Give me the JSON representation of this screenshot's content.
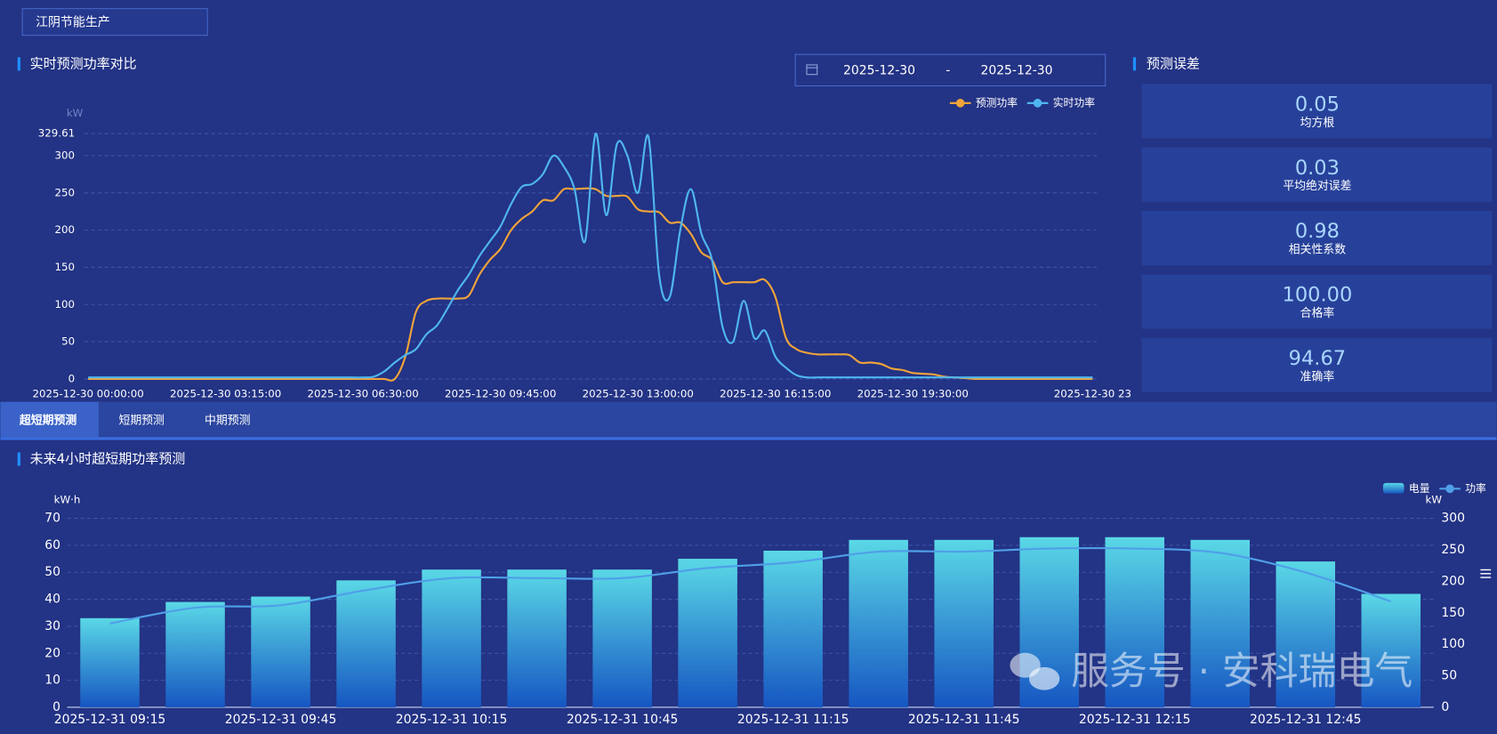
{
  "header": {
    "station": "江阴节能生产"
  },
  "date_range": {
    "start": "2025-12-30",
    "separator": "-",
    "end": "2025-12-30"
  },
  "chart_data": [
    {
      "type": "line",
      "title": "实时预测功率对比",
      "y_unit": "kW",
      "categories": [
        "2025-12-30 00:00:00",
        null,
        null,
        null,
        null,
        null,
        null,
        null,
        null,
        null,
        null,
        null,
        null,
        "2025-12-30 03:15:00",
        null,
        null,
        null,
        null,
        null,
        null,
        null,
        null,
        null,
        null,
        null,
        null,
        "2025-12-30 06:30:00",
        null,
        null,
        null,
        null,
        null,
        null,
        null,
        null,
        null,
        null,
        null,
        null,
        "2025-12-30 09:45:00",
        null,
        null,
        null,
        null,
        null,
        null,
        null,
        null,
        null,
        null,
        null,
        null,
        "2025-12-30 13:00:00",
        null,
        null,
        null,
        null,
        null,
        null,
        null,
        null,
        null,
        null,
        null,
        null,
        "2025-12-30 16:15:00",
        null,
        null,
        null,
        null,
        null,
        null,
        null,
        null,
        null,
        null,
        null,
        null,
        "2025-12-30 19:30:00",
        null,
        null,
        null,
        null,
        null,
        null,
        null,
        null,
        null,
        null,
        null,
        null,
        null,
        null,
        null,
        null,
        "2025-12-30 23"
      ],
      "series": [
        {
          "name": "预测功率",
          "color": "#f0a33a",
          "values": [
            0,
            0,
            0,
            0,
            0,
            0,
            0,
            0,
            0,
            0,
            0,
            0,
            0,
            0,
            0,
            0,
            0,
            0,
            0,
            0,
            0,
            0,
            0,
            0,
            0,
            0,
            0,
            0,
            0,
            0,
            30,
            90,
            105,
            108,
            108,
            108,
            112,
            140,
            160,
            175,
            200,
            215,
            225,
            240,
            240,
            255,
            255,
            256,
            255,
            246,
            246,
            245,
            228,
            225,
            224,
            210,
            210,
            195,
            170,
            160,
            130,
            130,
            130,
            130,
            133,
            110,
            55,
            40,
            35,
            33,
            33,
            33,
            32,
            22,
            22,
            20,
            14,
            12,
            8,
            7,
            6,
            3,
            2,
            1,
            0,
            0,
            0,
            0,
            0,
            0,
            0,
            0,
            0,
            0,
            0,
            0
          ]
        },
        {
          "name": "实时功率",
          "color": "#4fb6f0",
          "values": [
            2,
            2,
            2,
            2,
            2,
            2,
            2,
            2,
            2,
            2,
            2,
            2,
            2,
            2,
            2,
            2,
            2,
            2,
            2,
            2,
            2,
            2,
            2,
            2,
            2,
            2,
            2,
            3,
            10,
            22,
            32,
            40,
            60,
            72,
            95,
            120,
            140,
            165,
            185,
            205,
            235,
            258,
            262,
            275,
            300,
            285,
            255,
            185,
            329.61,
            220,
            315,
            300,
            250,
            325,
            140,
            110,
            200,
            255,
            195,
            160,
            70,
            50,
            105,
            55,
            65,
            30,
            15,
            5,
            2,
            2,
            2,
            2,
            2,
            2,
            2,
            2,
            2,
            2,
            2,
            2,
            2,
            2,
            2,
            2,
            2,
            2,
            2,
            2,
            2,
            2,
            2,
            2,
            2,
            2,
            2,
            2
          ]
        }
      ],
      "ylim": [
        0,
        329.61
      ],
      "yticks": [
        0,
        50,
        100,
        150,
        200,
        250,
        300,
        329.61
      ],
      "grid": true,
      "legend": "top-right"
    },
    {
      "type": "combo",
      "title": "未来4小时超短期功率预测",
      "y_unit": "kW·h",
      "y2_unit": "kW",
      "categories": [
        "2025-12-31 09:15",
        null,
        "2025-12-31 09:45",
        null,
        "2025-12-31 10:15",
        null,
        "2025-12-31 10:45",
        null,
        "2025-12-31 11:15",
        null,
        "2025-12-31 11:45",
        null,
        "2025-12-31 12:15",
        null,
        "2025-12-31 12:45",
        null
      ],
      "series": [
        {
          "name": "电量",
          "type": "bar",
          "color": "#5ad8e6",
          "color_bottom": "#1656c2",
          "values": [
            33,
            39,
            41,
            47,
            51,
            51,
            51,
            55,
            58,
            62,
            62,
            63,
            63,
            62,
            54,
            42
          ]
        },
        {
          "name": "功率",
          "type": "line",
          "axis": "y2",
          "color": "#4f9fe8",
          "values": [
            133,
            158,
            162,
            186,
            205,
            205,
            205,
            221,
            230,
            247,
            247,
            252,
            252,
            245,
            214,
            168
          ]
        }
      ],
      "ylim": [
        0,
        70
      ],
      "yticks": [
        0,
        10,
        20,
        30,
        40,
        50,
        60,
        70
      ],
      "y2lim": [
        0,
        300
      ],
      "y2ticks": [
        0,
        50,
        100,
        150,
        200,
        250,
        300
      ],
      "grid": true,
      "legend": "top-right"
    }
  ],
  "error_panel": {
    "title": "预测误差",
    "metrics": [
      {
        "value": "0.05",
        "label": "均方根"
      },
      {
        "value": "0.03",
        "label": "平均绝对误差"
      },
      {
        "value": "0.98",
        "label": "相关性系数"
      },
      {
        "value": "100.00",
        "label": "合格率"
      },
      {
        "value": "94.67",
        "label": "准确率"
      }
    ]
  },
  "tabs": [
    "超短期预测",
    "短期预测",
    "中期预测"
  ],
  "active_tab": 0,
  "watermark": "服务号 · 安科瑞电气"
}
